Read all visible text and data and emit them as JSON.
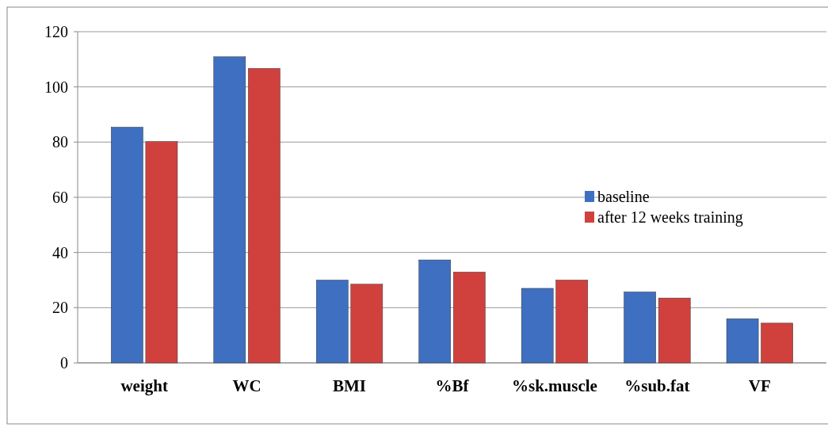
{
  "chart_data": {
    "type": "bar",
    "categories": [
      "weight",
      "WC",
      "BMI",
      "%Bf",
      "%sk.muscle",
      "%sub.fat",
      "VF"
    ],
    "series": [
      {
        "name": "baseline",
        "color": "#3f6fc0",
        "values": [
          85.4,
          110.9,
          30,
          37.3,
          27,
          25.7,
          16
        ]
      },
      {
        "name": "after 12 weeks training",
        "color": "#d0413e",
        "values": [
          80.2,
          106.7,
          28.5,
          32.9,
          30,
          23.5,
          14.4
        ]
      }
    ],
    "ylim": [
      0,
      120
    ],
    "yticks": [
      0,
      20,
      40,
      60,
      80,
      100,
      120
    ],
    "grid": "y",
    "legend": "right"
  }
}
